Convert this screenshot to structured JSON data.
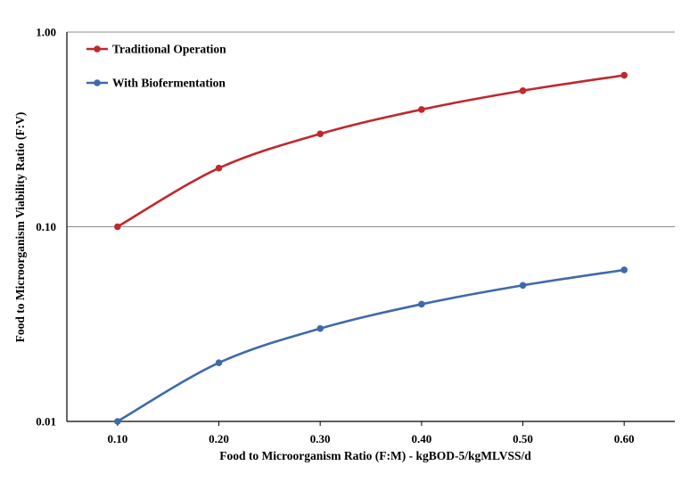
{
  "chart_data": {
    "type": "line",
    "title": "",
    "xlabel": "Food to Microorganism Ratio (F:M) - kgBOD-5/kgMLVSS/d",
    "ylabel": "Food to Microorganism Viability Ratio (F:V)",
    "x": [
      0.1,
      0.2,
      0.3,
      0.4,
      0.5,
      0.6
    ],
    "x_tick_labels": [
      "0.10",
      "0.20",
      "0.30",
      "0.40",
      "0.50",
      "0.60"
    ],
    "xlim": [
      0.05,
      0.65
    ],
    "y_scale": "log",
    "ylim": [
      0.01,
      1.0
    ],
    "y_ticks": [
      0.01,
      0.1,
      1.0
    ],
    "y_tick_labels": [
      "0.01",
      "0.10",
      "1.00"
    ],
    "grid": "horizontal major",
    "legend_position": "top-left",
    "series": [
      {
        "name": "Traditional Operation",
        "color": "#c0282d",
        "values": [
          0.1,
          0.2,
          0.3,
          0.4,
          0.5,
          0.6
        ]
      },
      {
        "name": "With Biofermentation",
        "color": "#3f6aaa",
        "values": [
          0.01,
          0.02,
          0.03,
          0.04,
          0.05,
          0.06
        ]
      }
    ]
  }
}
